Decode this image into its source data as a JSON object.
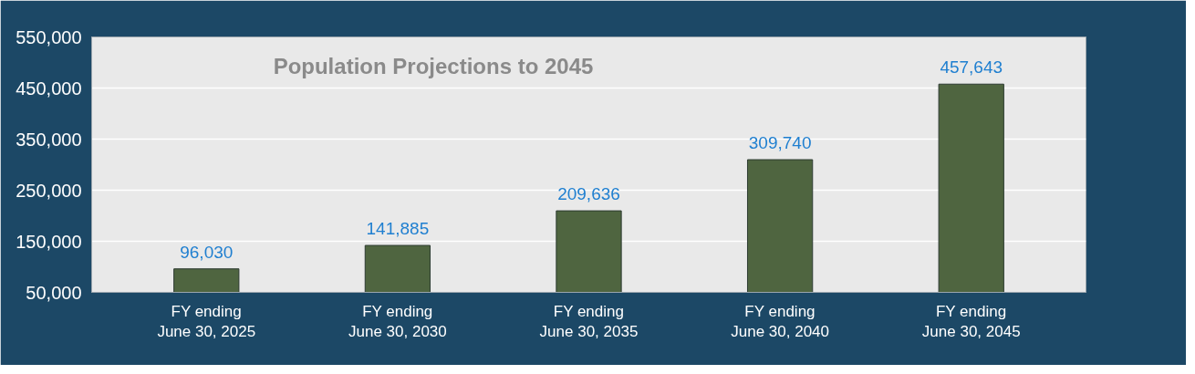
{
  "chart_data": {
    "type": "bar",
    "title": "Population Projections to 2045",
    "categories": [
      "FY ending\nJune 30, 2025",
      "FY ending\nJune 30, 2030",
      "FY ending\nJune 30, 2035",
      "FY ending\nJune 30, 2040",
      "FY ending\nJune 30, 2045"
    ],
    "values": [
      96030,
      141885,
      209636,
      309740,
      457643
    ],
    "color": "#4f6540",
    "ylim": [
      50000,
      550000
    ],
    "yticks": [
      {
        "value": 50000,
        "label": "50,000"
      },
      {
        "value": 150000,
        "label": "150,000"
      },
      {
        "value": 250000,
        "label": "250,000"
      },
      {
        "value": 350000,
        "label": "350,000"
      },
      {
        "value": 450000,
        "label": "450,000"
      },
      {
        "value": 550000,
        "label": "550,000"
      }
    ],
    "value_labels": [
      "96,030",
      "141,885",
      "209,636",
      "309,740",
      "457,643"
    ],
    "grid": "y"
  }
}
